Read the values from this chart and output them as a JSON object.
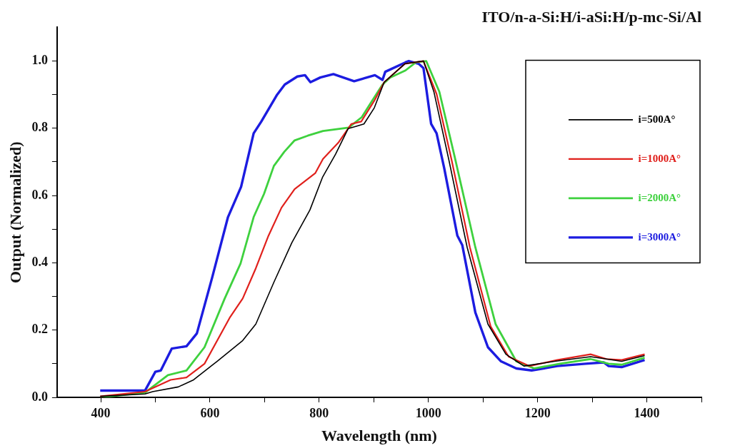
{
  "chart_data": {
    "type": "line",
    "title": "ITO/n-a-Si:H/i-aSi:H/p-mc-Si/Al",
    "xlabel": "Wavelength (nm)",
    "ylabel": "Output (Normalized)",
    "xlim": [
      320,
      1500
    ],
    "xticks": [
      400,
      {
        "value": 500,
        "label": null
      },
      600,
      {
        "value": 700,
        "label": null
      },
      800,
      {
        "value": 900,
        "label": null
      },
      1000,
      {
        "value": 1100,
        "label": null
      },
      1200,
      {
        "value": 1300,
        "label": null
      },
      1400,
      {
        "value": 1500,
        "label": null
      }
    ],
    "ylim": [
      0,
      1.1
    ],
    "yticks": [
      {
        "value": 0,
        "label": "0.0"
      },
      {
        "value": 0.1,
        "label": null
      },
      0.2,
      {
        "value": 0.3,
        "label": null
      },
      0.4,
      {
        "value": 0.5,
        "label": null
      },
      0.6,
      {
        "value": 0.7,
        "label": null
      },
      0.8,
      {
        "value": 0.9,
        "label": null
      },
      {
        "value": 1,
        "label": "1.0"
      }
    ],
    "grid": false,
    "legend": "top right",
    "marker": "none",
    "line_style": "solid",
    "series": [
      {
        "name": "i=500A°",
        "color": "#000000",
        "x": [
          399,
          481,
          495,
          542,
          570,
          613,
          660,
          684,
          717,
          750,
          783,
          806,
          830,
          853,
          868,
          882,
          901,
          919,
          957,
          991,
          1010,
          1038,
          1071,
          1109,
          1142,
          1175,
          1231,
          1297,
          1326,
          1354,
          1396
        ],
        "values": [
          0.003,
          0.01,
          0.017,
          0.031,
          0.052,
          0.107,
          0.169,
          0.218,
          0.342,
          0.46,
          0.557,
          0.654,
          0.723,
          0.799,
          0.806,
          0.813,
          0.861,
          0.937,
          0.992,
          1.0,
          0.909,
          0.702,
          0.446,
          0.218,
          0.128,
          0.093,
          0.107,
          0.121,
          0.114,
          0.107,
          0.124
        ]
      },
      {
        "name": "i=1000A°",
        "color": "#e0201c",
        "x": [
          399,
          481,
          528,
          557,
          590,
          637,
          660,
          684,
          707,
          731,
          755,
          793,
          807,
          835,
          859,
          877,
          901,
          919,
          957,
          991,
          1015,
          1043,
          1076,
          1114,
          1147,
          1185,
          1236,
          1297,
          1326,
          1354,
          1396
        ],
        "values": [
          0.003,
          0.017,
          0.052,
          0.059,
          0.1,
          0.239,
          0.294,
          0.384,
          0.48,
          0.564,
          0.619,
          0.667,
          0.709,
          0.757,
          0.813,
          0.82,
          0.882,
          0.937,
          0.992,
          1.0,
          0.902,
          0.702,
          0.446,
          0.211,
          0.121,
          0.093,
          0.111,
          0.128,
          0.114,
          0.111,
          0.128
        ]
      },
      {
        "name": "i=2000A°",
        "color": "#3ed13e",
        "x": [
          399,
          481,
          523,
          557,
          590,
          627,
          656,
          680,
          699,
          717,
          736,
          755,
          779,
          807,
          854,
          878,
          897,
          916,
          930,
          958,
          977,
          996,
          1020,
          1048,
          1086,
          1123,
          1161,
          1194,
          1241,
          1297,
          1330,
          1354,
          1396
        ],
        "values": [
          0,
          0.014,
          0.066,
          0.08,
          0.149,
          0.294,
          0.398,
          0.536,
          0.605,
          0.688,
          0.73,
          0.764,
          0.778,
          0.792,
          0.802,
          0.833,
          0.882,
          0.93,
          0.951,
          0.972,
          0.996,
          1.0,
          0.909,
          0.716,
          0.446,
          0.218,
          0.107,
          0.086,
          0.1,
          0.114,
          0.1,
          0.097,
          0.118
        ]
      },
      {
        "name": "i=3000A°",
        "color": "#1c1ce0",
        "x": [
          399,
          481,
          500,
          510,
          530,
          557,
          576,
          604,
          633,
          657,
          680,
          694,
          723,
          737,
          760,
          774,
          784,
          802,
          826,
          864,
          902,
          916,
          921,
          958,
          964,
          982,
          991,
          1005,
          1015,
          1029,
          1053,
          1062,
          1086,
          1109,
          1133,
          1161,
          1189,
          1236,
          1288,
          1321,
          1330,
          1354,
          1396
        ],
        "values": [
          0.02,
          0.02,
          0.076,
          0.08,
          0.145,
          0.152,
          0.19,
          0.356,
          0.536,
          0.626,
          0.785,
          0.82,
          0.9,
          0.93,
          0.954,
          0.958,
          0.937,
          0.951,
          0.961,
          0.94,
          0.958,
          0.944,
          0.968,
          0.996,
          1.0,
          0.992,
          0.979,
          0.813,
          0.785,
          0.681,
          0.481,
          0.453,
          0.252,
          0.149,
          0.107,
          0.086,
          0.08,
          0.093,
          0.1,
          0.104,
          0.093,
          0.09,
          0.111
        ]
      }
    ]
  }
}
